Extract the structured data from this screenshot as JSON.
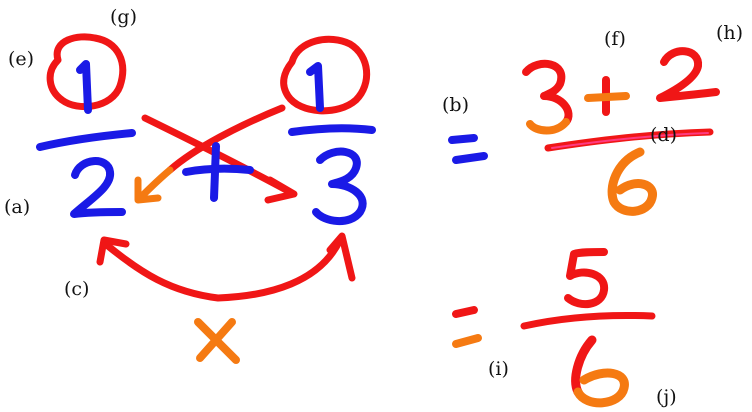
{
  "colors": {
    "blue": "#1a1ae6",
    "red": "#f01616",
    "orange": "#f57a12",
    "pink_line": "#ff3a80"
  },
  "labels": {
    "a": "(a)",
    "b": "(b)",
    "c": "(c)",
    "d": "(d)",
    "e": "(e)",
    "f": "(f)",
    "g": "(g)",
    "h": "(h)",
    "i": "(i)",
    "j": "(j)"
  },
  "fractions": {
    "left_num": "1",
    "left_den": "2",
    "right_num": "1",
    "right_den": "3",
    "plus": "+",
    "times": "×"
  },
  "step1": {
    "equals": "=",
    "num_a": "3",
    "plus": "+",
    "num_b": "2",
    "den": "6"
  },
  "step2": {
    "equals": "=",
    "num": "5",
    "den": "6"
  }
}
